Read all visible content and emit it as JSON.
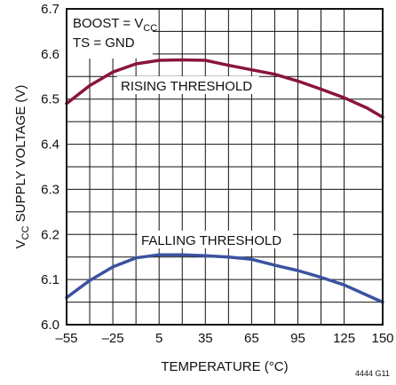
{
  "chart_data": {
    "type": "line",
    "xlabel": "TEMPERATURE (°C)",
    "ylabel": {
      "main": "V",
      "sub": "CC",
      "rest": " SUPPLY VOLTAGE (V)"
    },
    "xlim": [
      -55,
      150
    ],
    "ylim": [
      6.0,
      6.7
    ],
    "x_ticks": [
      -55,
      -25,
      5,
      35,
      65,
      95,
      125,
      150
    ],
    "x_tick_labels": [
      "–55",
      "–25",
      "5",
      "35",
      "65",
      "95",
      "125",
      "150"
    ],
    "y_ticks": [
      6.0,
      6.1,
      6.2,
      6.3,
      6.4,
      6.5,
      6.6,
      6.7
    ],
    "y_tick_labels": [
      "6.0",
      "6.1",
      "6.2",
      "6.3",
      "6.4",
      "6.5",
      "6.6",
      "6.7"
    ],
    "x_grid": [
      -55,
      -40,
      -25,
      -10,
      5,
      20,
      35,
      50,
      65,
      80,
      95,
      110,
      125,
      150
    ],
    "y_grid": [
      6.0,
      6.05,
      6.1,
      6.15,
      6.2,
      6.25,
      6.3,
      6.35,
      6.4,
      6.45,
      6.5,
      6.55,
      6.6,
      6.65,
      6.7
    ],
    "grid": true,
    "legend_box": {
      "line1": {
        "main": "BOOST = V",
        "sub": "CC"
      },
      "line2": "TS = GND"
    },
    "series": [
      {
        "name": "RISING THRESHOLD",
        "color": "#8a1538",
        "x": [
          -55,
          -40,
          -25,
          -10,
          5,
          20,
          35,
          50,
          65,
          80,
          95,
          110,
          125,
          140,
          150
        ],
        "y": [
          6.49,
          6.53,
          6.56,
          6.578,
          6.586,
          6.587,
          6.586,
          6.575,
          6.565,
          6.555,
          6.54,
          6.522,
          6.503,
          6.48,
          6.46
        ]
      },
      {
        "name": "FALLING THRESHOLD",
        "color": "#3a53a0",
        "x": [
          -55,
          -40,
          -25,
          -10,
          5,
          20,
          35,
          50,
          65,
          80,
          95,
          110,
          125,
          140,
          150
        ],
        "y": [
          6.06,
          6.098,
          6.128,
          6.148,
          6.155,
          6.155,
          6.153,
          6.15,
          6.145,
          6.132,
          6.12,
          6.105,
          6.088,
          6.065,
          6.05
        ]
      }
    ],
    "figure_id": "4444 G11"
  }
}
